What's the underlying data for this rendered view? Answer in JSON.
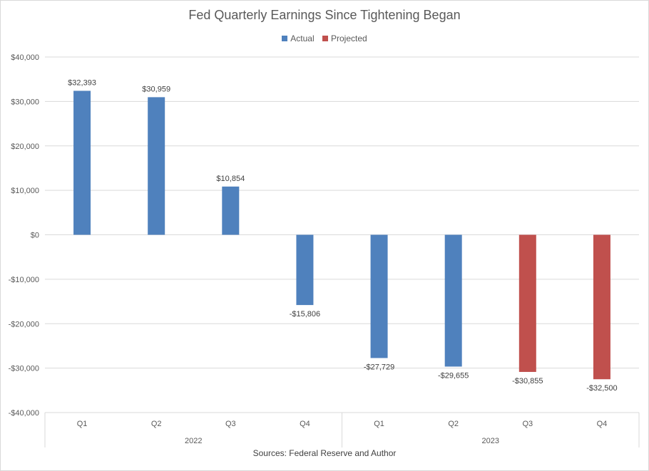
{
  "chart_data": {
    "type": "bar",
    "title": "Fed Quarterly Earnings Since Tightening Began",
    "source": "Sources: Federal Reserve and Author",
    "categories": [
      "Q1",
      "Q2",
      "Q3",
      "Q4",
      "Q1",
      "Q2",
      "Q3",
      "Q4"
    ],
    "groups": [
      {
        "label": "2022",
        "span": [
          0,
          3
        ]
      },
      {
        "label": "2023",
        "span": [
          4,
          7
        ]
      }
    ],
    "series": [
      {
        "name": "Actual",
        "color": "#4f81bd",
        "values": [
          32393,
          30959,
          10854,
          -15806,
          -27729,
          -29655,
          null,
          null
        ]
      },
      {
        "name": "Projected",
        "color": "#c0504d",
        "values": [
          null,
          null,
          null,
          null,
          null,
          null,
          -30855,
          -32500
        ]
      }
    ],
    "data_labels": [
      "$32,393",
      "$30,959",
      "$10,854",
      "-$15,806",
      "-$27,729",
      "-$29,655",
      "-$30,855",
      "-$32,500"
    ],
    "ylim": [
      -40000,
      40000
    ],
    "yticks": [
      40000,
      30000,
      20000,
      10000,
      0,
      -10000,
      -20000,
      -30000,
      -40000
    ],
    "ytick_labels": [
      "$40,000",
      "$30,000",
      "$20,000",
      "$10,000",
      "$0",
      "-$10,000",
      "-$20,000",
      "-$30,000",
      "-$40,000"
    ],
    "grid": true,
    "legend_position": "top-center"
  }
}
